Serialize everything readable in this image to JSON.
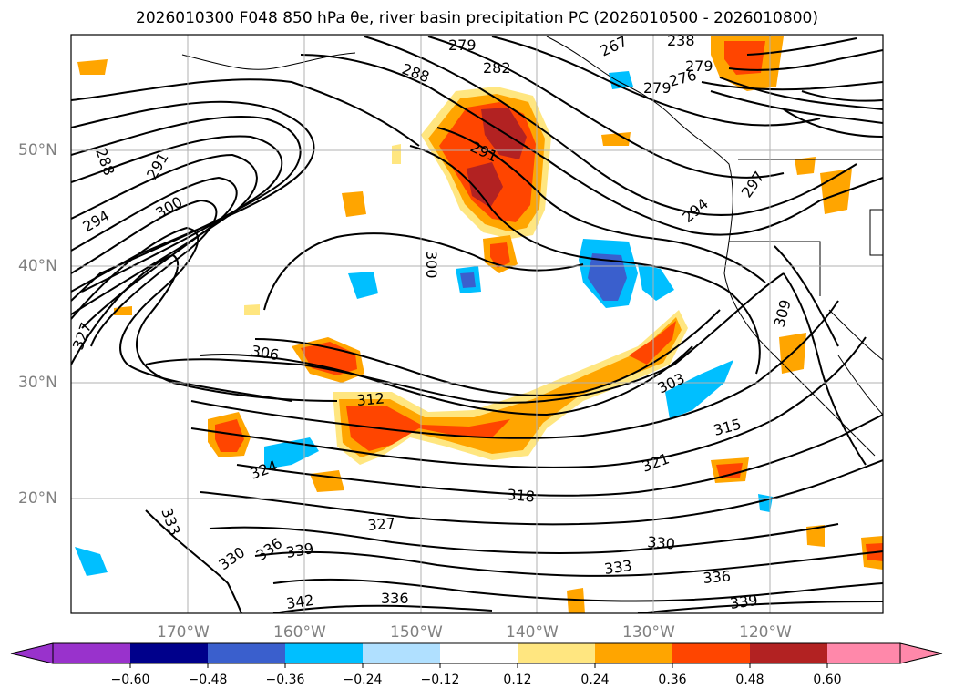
{
  "title": "2026010300 F048 850 hPa θe, river basin precipitation PC (2026010500 - 2026010800)",
  "map": {
    "region": "North-east Pacific / western North America",
    "lat_labels": [
      "50°N",
      "40°N",
      "30°N",
      "20°N"
    ],
    "lon_labels": [
      "170°W",
      "160°W",
      "150°W",
      "140°W",
      "130°W",
      "120°W"
    ],
    "contour_variable": "850 hPa theta-e (K)",
    "contour_labels": [
      "288",
      "279",
      "282",
      "288",
      "291",
      "294",
      "297",
      "300",
      "291",
      "294",
      "300",
      "306",
      "312",
      "303",
      "315",
      "321",
      "318",
      "324",
      "327",
      "330",
      "336",
      "339",
      "333",
      "342",
      "336",
      "330",
      "333",
      "336",
      "339",
      "309",
      "327",
      "276",
      "279",
      "267",
      "238",
      "279"
    ],
    "fill_variable": "river basin precipitation PC"
  },
  "colorbar": {
    "ticks": [
      "−0.60",
      "−0.48",
      "−0.36",
      "−0.24",
      "−0.12",
      "0.12",
      "0.24",
      "0.36",
      "0.48",
      "0.60"
    ],
    "colors": [
      "#9932cc",
      "#00008b",
      "#3a5fcd",
      "#00bfff",
      "#b0e0ff",
      "#ffffff",
      "#ffe680",
      "#ffa500",
      "#ff4500",
      "#b22222",
      "#ff88aa"
    ]
  }
}
